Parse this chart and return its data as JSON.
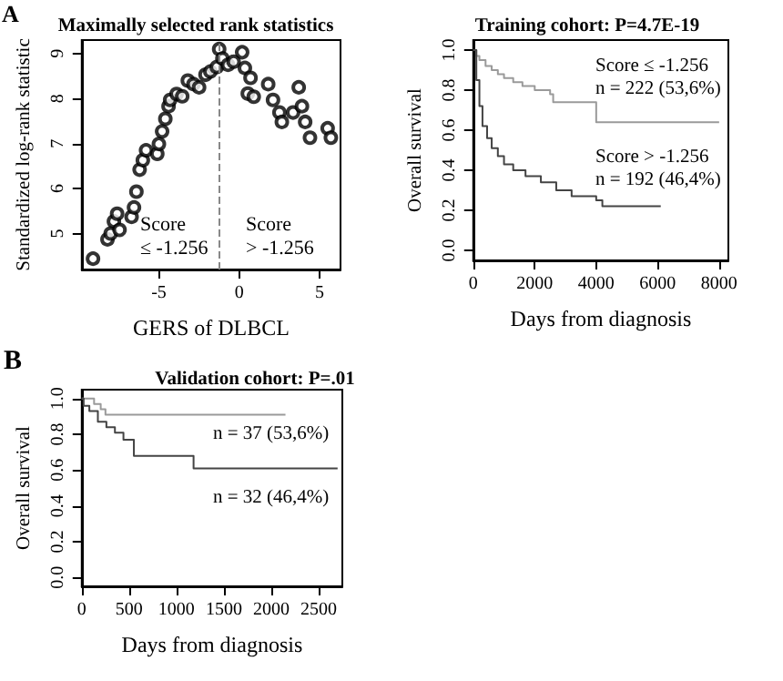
{
  "chart_data": [
    {
      "type": "scatter",
      "title": "Maximally selected rank statistics",
      "xlabel": "GERS of DLBCL",
      "ylabel": "Standardized log-rank statistic",
      "annotations": [
        "A",
        "Score\n≤ -1.256",
        "Score\n> -1.256"
      ],
      "x": [
        -9.1,
        -8.2,
        -8.0,
        -7.8,
        -7.6,
        -7.45,
        -6.7,
        -6.55,
        -6.4,
        -6.2,
        -6.0,
        -5.8,
        -5.1,
        -5.0,
        -4.8,
        -4.6,
        -4.4,
        -4.3,
        -3.9,
        -3.55,
        -3.2,
        -2.85,
        -2.5,
        -2.1,
        -1.8,
        -1.4,
        -1.25,
        -1.05,
        -0.7,
        -0.35,
        0.18,
        0.35,
        0.53,
        0.7,
        0.9,
        1.8,
        2.1,
        2.5,
        2.65,
        3.35,
        3.7,
        3.9,
        4.1,
        4.4,
        5.5,
        5.7
      ],
      "values": [
        4.44,
        4.87,
        5.0,
        5.27,
        5.44,
        5.08,
        5.37,
        5.58,
        5.93,
        6.42,
        6.63,
        6.85,
        6.77,
        6.99,
        7.27,
        7.55,
        7.83,
        7.97,
        8.1,
        8.05,
        8.4,
        8.32,
        8.25,
        8.53,
        8.6,
        8.7,
        9.1,
        8.89,
        8.75,
        8.82,
        9.03,
        8.68,
        8.11,
        8.46,
        8.04,
        8.32,
        7.97,
        7.69,
        7.48,
        7.69,
        8.25,
        7.83,
        7.48,
        7.13,
        7.34,
        7.13
      ],
      "color": "#000000",
      "marker": "circle",
      "xlim": [
        -9.8,
        6.3
      ],
      "ylim": [
        4.2,
        9.3
      ],
      "xticks": [
        -5,
        0,
        5
      ],
      "yticks": [
        5,
        6,
        7,
        8,
        9
      ],
      "ref_lines": [
        {
          "axis": "x",
          "value": -1.256,
          "label": null,
          "color": "#888888",
          "line_style": "dashed"
        }
      ],
      "grid": false
    },
    {
      "type": "step",
      "title": "Training cohort: P=4.7E-19",
      "xlabel": "Days from diagnosis",
      "ylabel": "Overall survival",
      "annotations": [
        "Score ≤ -1.256\nn = 222 (53,6%)",
        "Score > -1.256\nn = 192 (46,4%)"
      ],
      "series": [
        {
          "color": "#9a9a9a",
          "x": [
            0,
            100,
            200,
            400,
            600,
            800,
            1000,
            1300,
            1600,
            2000,
            2500,
            2600,
            3950,
            4000,
            8000
          ],
          "values": [
            1.0,
            0.97,
            0.95,
            0.92,
            0.9,
            0.88,
            0.86,
            0.84,
            0.82,
            0.8,
            0.78,
            0.74,
            0.74,
            0.64,
            0.64
          ]
        },
        {
          "color": "#444444",
          "x": [
            0,
            100,
            200,
            300,
            450,
            600,
            800,
            1000,
            1300,
            1700,
            2200,
            2700,
            3200,
            4000,
            4200,
            6100
          ],
          "values": [
            1.0,
            0.85,
            0.72,
            0.62,
            0.56,
            0.51,
            0.47,
            0.43,
            0.4,
            0.37,
            0.34,
            0.3,
            0.27,
            0.25,
            0.22,
            0.22
          ]
        }
      ],
      "xlim": [
        0,
        8300
      ],
      "ylim": [
        -0.05,
        1.05
      ],
      "xticks": [
        0,
        2000,
        4000,
        6000,
        8000
      ],
      "yticks": [
        {
          "value": 0,
          "label": "0.0"
        },
        {
          "value": 0.2,
          "label": "0.2"
        },
        {
          "value": 0.4,
          "label": "0.4"
        },
        {
          "value": 0.6,
          "label": "0.6"
        },
        {
          "value": 0.8,
          "label": "0.8"
        },
        {
          "value": 1,
          "label": "1.0"
        }
      ],
      "grid": false,
      "marker": "none"
    },
    {
      "type": "step",
      "title": "Validation cohort: P=.01",
      "xlabel": "Days from diagnosis",
      "ylabel": "Overall survival",
      "annotations": [
        "B",
        "n = 37 (53,6%)",
        "n = 32 (46,4%)"
      ],
      "series": [
        {
          "color": "#9a9a9a",
          "x": [
            0,
            130,
            200,
            250,
            2150
          ],
          "values": [
            1.0,
            0.97,
            0.94,
            0.91,
            0.91
          ]
        },
        {
          "color": "#444444",
          "x": [
            0,
            20,
            80,
            170,
            260,
            350,
            440,
            550,
            1130,
            1180,
            2700
          ],
          "values": [
            1.0,
            0.96,
            0.93,
            0.87,
            0.84,
            0.81,
            0.77,
            0.68,
            0.68,
            0.61,
            0.61
          ]
        }
      ],
      "xlim": [
        0,
        2750
      ],
      "ylim": [
        -0.05,
        1.05
      ],
      "xticks": [
        0,
        500,
        1000,
        1500,
        2000,
        2500
      ],
      "yticks": [
        {
          "value": 0,
          "label": "0.0"
        },
        {
          "value": 0.2,
          "label": "0.2"
        },
        {
          "value": 0.4,
          "label": "0.4"
        },
        {
          "value": 0.6,
          "label": "0.6"
        },
        {
          "value": 0.8,
          "label": "0.8"
        },
        {
          "value": 1,
          "label": "1.0"
        }
      ],
      "grid": false,
      "marker": "none"
    }
  ]
}
